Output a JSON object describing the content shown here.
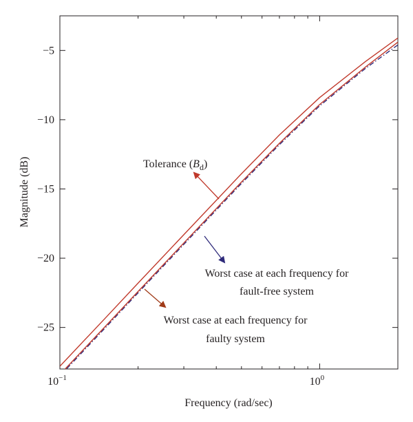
{
  "chart_data": {
    "type": "line",
    "xlabel": "Frequency (rad/sec)",
    "ylabel": "Magnitude (dB)",
    "x_scale": "log",
    "xlim": [
      0.1,
      2.0
    ],
    "ylim": [
      -28,
      -2.5
    ],
    "x_ticks": [
      {
        "value": 0.1,
        "base": "10",
        "exp": "−1"
      },
      {
        "value": 1.0,
        "base": "10",
        "exp": "0"
      }
    ],
    "y_ticks": [
      {
        "value": -5,
        "label": "−5"
      },
      {
        "value": -10,
        "label": "−10"
      },
      {
        "value": -15,
        "label": "−15"
      },
      {
        "value": -20,
        "label": "−20"
      },
      {
        "value": -25,
        "label": "−25"
      }
    ],
    "series": [
      {
        "key": "tolerance",
        "color": "#c0392b",
        "dash": "solid",
        "x": [
          0.1,
          0.15,
          0.2,
          0.3,
          0.5,
          0.7,
          1.0,
          1.5,
          2.0
        ],
        "y": [
          -27.8,
          -24.3,
          -21.8,
          -18.3,
          -13.9,
          -11.1,
          -8.4,
          -5.8,
          -4.1
        ]
      },
      {
        "key": "fault_free",
        "color": "#2e2a7a",
        "dash": "dashdot",
        "x": [
          0.1,
          0.15,
          0.2,
          0.3,
          0.5,
          0.7,
          1.0,
          1.5,
          2.0
        ],
        "y": [
          -28.5,
          -25.0,
          -22.5,
          -19.0,
          -14.6,
          -11.8,
          -9.0,
          -6.3,
          -4.6
        ]
      },
      {
        "key": "faulty",
        "color": "#c0392b",
        "dash": "solid",
        "x": [
          0.1,
          0.15,
          0.2,
          0.3,
          0.5,
          0.7,
          1.0,
          1.5,
          2.0
        ],
        "y": [
          -28.4,
          -24.9,
          -22.4,
          -18.9,
          -14.5,
          -11.7,
          -8.9,
          -6.2,
          -4.4
        ]
      }
    ],
    "annotations": {
      "tolerance": {
        "text": "Tolerance (",
        "symbol": "B",
        "subscript": "d",
        "close": ")",
        "arrow_color": "#c0392b"
      },
      "fault_free": {
        "line1": "Worst case at each frequency for",
        "line2": "fault-free system",
        "arrow_color": "#2e2a7a"
      },
      "faulty": {
        "line1": "Worst case at each frequency for",
        "line2": "faulty system",
        "arrow_color": "#a03a18"
      }
    },
    "grid": false
  }
}
